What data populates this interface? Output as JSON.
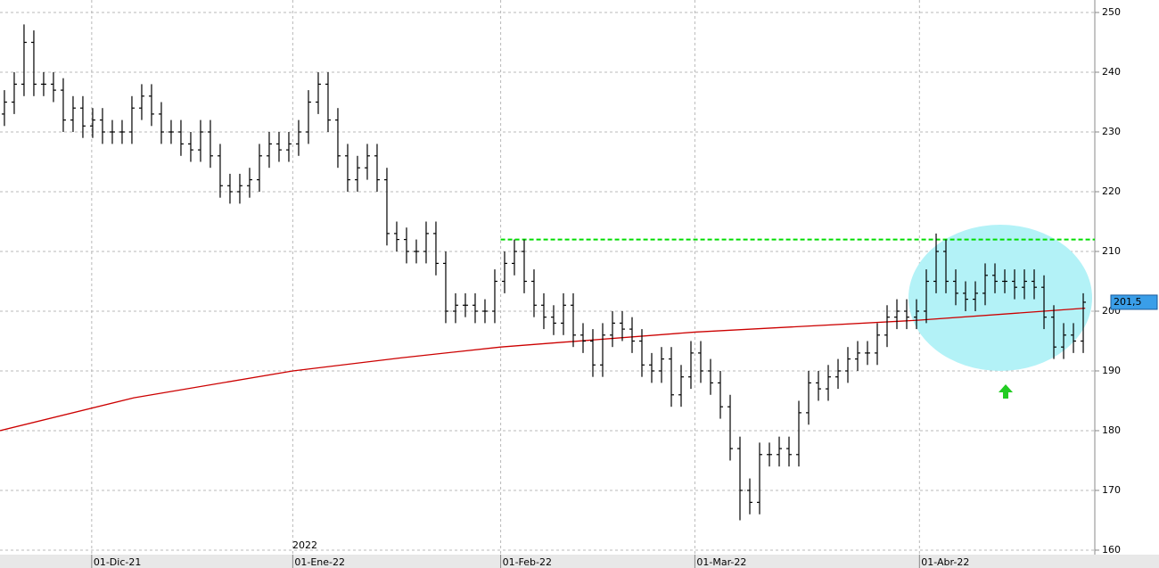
{
  "chart_data": {
    "type": "ohlc",
    "x": [
      0,
      1,
      2,
      3,
      4,
      5,
      6,
      7,
      8,
      9,
      10,
      11,
      12,
      13,
      14,
      15,
      16,
      17,
      18,
      19,
      20,
      21,
      22,
      23,
      24,
      25,
      26,
      27,
      28,
      29,
      30,
      31,
      32,
      33,
      34,
      35,
      36,
      37,
      38,
      39,
      40,
      41,
      42,
      43,
      44,
      45,
      46,
      47,
      48,
      49,
      50,
      51,
      52,
      53,
      54,
      55,
      56,
      57,
      58,
      59,
      60,
      61,
      62,
      63,
      64,
      65,
      66,
      67,
      68,
      69,
      70,
      71,
      72,
      73,
      74,
      75,
      76,
      77,
      78,
      79,
      80,
      81,
      82,
      83,
      84,
      85,
      86,
      87,
      88,
      89,
      90,
      91,
      92,
      93,
      94,
      95,
      96,
      97,
      98,
      99,
      100,
      101,
      102,
      103,
      104,
      105,
      106,
      107,
      108,
      109,
      110
    ],
    "open": [
      233,
      235,
      238,
      245,
      238,
      238,
      237,
      232,
      234,
      231,
      232,
      230,
      230,
      230,
      234,
      236,
      233,
      230,
      230,
      228,
      227,
      230,
      226,
      221,
      220,
      221,
      222,
      226,
      228,
      227,
      228,
      230,
      235,
      238,
      232,
      226,
      222,
      224,
      226,
      222,
      213,
      212,
      210,
      210,
      213,
      208,
      200,
      201,
      201,
      200,
      200,
      205,
      208,
      210,
      205,
      201,
      199,
      198,
      201,
      196,
      195,
      191,
      196,
      198,
      197,
      195,
      191,
      190,
      192,
      186,
      189,
      193,
      190,
      188,
      184,
      177,
      170,
      168,
      176,
      176,
      177,
      176,
      183,
      188,
      187,
      189,
      190,
      192,
      193,
      193,
      196,
      199,
      200,
      199,
      200,
      205,
      210,
      205,
      203,
      202,
      203,
      206,
      205,
      205,
      204,
      205,
      204,
      199,
      194,
      196,
      195
    ],
    "high": [
      237,
      240,
      248,
      247,
      240,
      240,
      239,
      236,
      236,
      234,
      234,
      232,
      232,
      236,
      238,
      238,
      235,
      232,
      232,
      230,
      232,
      232,
      228,
      223,
      223,
      224,
      228,
      230,
      230,
      230,
      232,
      237,
      240,
      240,
      234,
      228,
      226,
      228,
      228,
      224,
      215,
      214,
      212,
      215,
      215,
      210,
      203,
      203,
      203,
      202,
      207,
      210,
      212,
      212,
      207,
      203,
      201,
      203,
      203,
      198,
      197,
      198,
      200,
      200,
      199,
      197,
      193,
      194,
      194,
      191,
      195,
      195,
      192,
      190,
      186,
      179,
      172,
      178,
      178,
      179,
      179,
      185,
      190,
      190,
      191,
      192,
      194,
      195,
      195,
      198,
      201,
      202,
      202,
      202,
      207,
      213,
      212,
      207,
      205,
      205,
      208,
      208,
      207,
      207,
      207,
      207,
      206,
      201,
      198,
      198,
      203
    ],
    "low": [
      231,
      233,
      236,
      236,
      236,
      235,
      230,
      230,
      229,
      229,
      228,
      228,
      228,
      228,
      232,
      231,
      228,
      228,
      226,
      225,
      225,
      224,
      219,
      218,
      218,
      219,
      220,
      224,
      225,
      225,
      226,
      228,
      233,
      230,
      224,
      220,
      220,
      222,
      220,
      211,
      210,
      208,
      208,
      208,
      206,
      198,
      198,
      199,
      198,
      198,
      198,
      203,
      206,
      203,
      199,
      197,
      196,
      196,
      194,
      193,
      189,
      189,
      194,
      195,
      193,
      189,
      188,
      188,
      184,
      184,
      187,
      188,
      186,
      182,
      175,
      165,
      166,
      166,
      174,
      174,
      174,
      174,
      181,
      185,
      185,
      187,
      188,
      190,
      191,
      191,
      194,
      197,
      197,
      197,
      198,
      203,
      203,
      201,
      200,
      200,
      201,
      203,
      203,
      202,
      202,
      202,
      197,
      192,
      192,
      193,
      193
    ],
    "close": [
      235,
      238,
      245,
      238,
      238,
      237,
      232,
      234,
      231,
      232,
      230,
      230,
      230,
      234,
      236,
      233,
      230,
      230,
      228,
      227,
      230,
      226,
      221,
      220,
      221,
      222,
      226,
      228,
      227,
      228,
      230,
      235,
      238,
      232,
      226,
      222,
      224,
      226,
      222,
      213,
      212,
      210,
      210,
      213,
      208,
      200,
      201,
      201,
      200,
      200,
      205,
      208,
      210,
      205,
      201,
      199,
      198,
      201,
      196,
      195,
      191,
      196,
      198,
      197,
      195,
      191,
      190,
      192,
      186,
      189,
      193,
      190,
      188,
      184,
      177,
      170,
      168,
      176,
      176,
      177,
      176,
      183,
      188,
      187,
      189,
      190,
      192,
      193,
      193,
      196,
      199,
      200,
      199,
      200,
      205,
      210,
      205,
      203,
      202,
      203,
      206,
      205,
      205,
      204,
      205,
      204,
      199,
      194,
      196,
      195,
      201.5
    ],
    "color": "#000000",
    "moving_average": {
      "x": [
        -0.45,
        13.2,
        29.4,
        40.5,
        50.6,
        70.4,
        93.3,
        110.2
      ],
      "values": [
        180,
        185.5,
        190,
        192.2,
        194,
        196.5,
        198.5,
        200.5
      ],
      "color": "#cc0000"
    },
    "resistance": {
      "x": [
        50.6,
        111.18
      ],
      "value": 212,
      "color": "#00dd00"
    },
    "last_price": {
      "value": 201.5,
      "label": "201,5"
    },
    "annotation": "2022",
    "xlim": [
      -0.45,
      111.18
    ],
    "ylim": [
      159.25,
      252.09
    ],
    "yticks": [
      160,
      170,
      180,
      190,
      200,
      210,
      220,
      230,
      240,
      250
    ],
    "xticks": [
      {
        "value": 8.9,
        "label": "01-Dic-21"
      },
      {
        "value": 29.4,
        "label": "01-Ene-22"
      },
      {
        "value": 50.6,
        "label": "01-Feb-22"
      },
      {
        "value": 70.4,
        "label": "01-Mar-22"
      },
      {
        "value": 93.3,
        "label": "01-Abr-22"
      }
    ],
    "grid": true
  }
}
